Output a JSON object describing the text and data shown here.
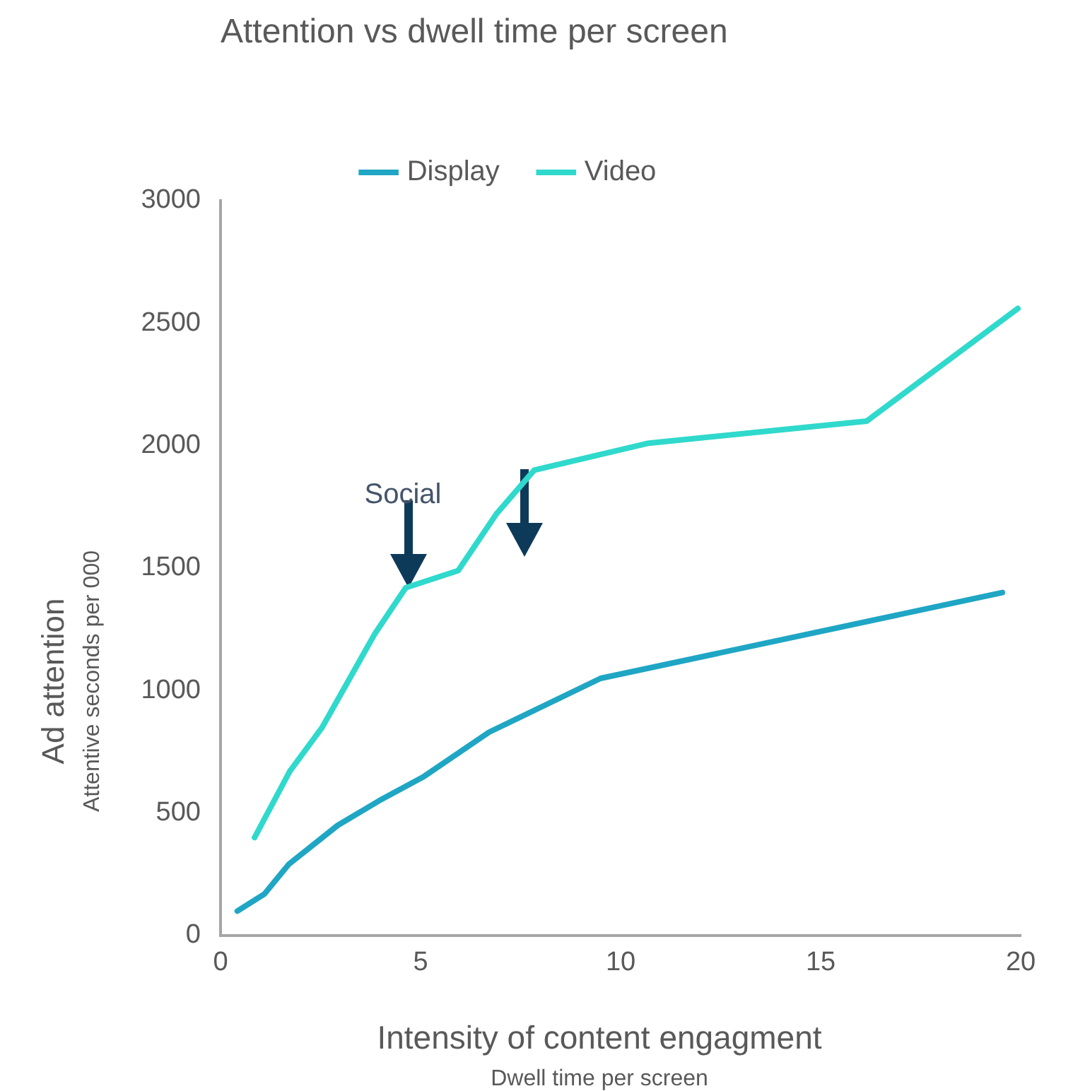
{
  "chart_data": {
    "type": "line",
    "title": "Attention vs dwell time per screen",
    "xlabel": "Intensity of content engagment",
    "ylabel": "Ad attention",
    "annotations": [
      {
        "text": "Social",
        "x": 4.7,
        "y": 1420
      },
      "Attentive seconds per 000",
      "Dwell time per screen"
    ],
    "xlim": [
      0,
      20
    ],
    "xticks": [
      0,
      5,
      10,
      15,
      20
    ],
    "ylim": [
      0,
      3000
    ],
    "yticks": [
      0,
      500,
      1000,
      1500,
      2000,
      2500,
      3000
    ],
    "grid": false,
    "legend": "top",
    "marker": "none",
    "line_style": "solid",
    "series": [
      {
        "name": "Display",
        "color": "#1fa6c4",
        "x": [
          0.42,
          1.1,
          1.7,
          2.93,
          3.96,
          5.09,
          6.71,
          9.5,
          19.54
        ],
        "values": [
          100,
          170,
          290,
          450,
          550,
          650,
          830,
          1050,
          1400
        ]
      },
      {
        "name": "Video",
        "color": "#2fd9cc",
        "x": [
          0.85,
          1.73,
          2.54,
          3.85,
          4.63,
          5.94,
          6.89,
          7.84,
          10.7,
          16.15,
          19.93
        ],
        "values": [
          400,
          670,
          850,
          1230,
          1420,
          1490,
          1720,
          1900,
          2010,
          2100,
          2560
        ]
      }
    ]
  }
}
